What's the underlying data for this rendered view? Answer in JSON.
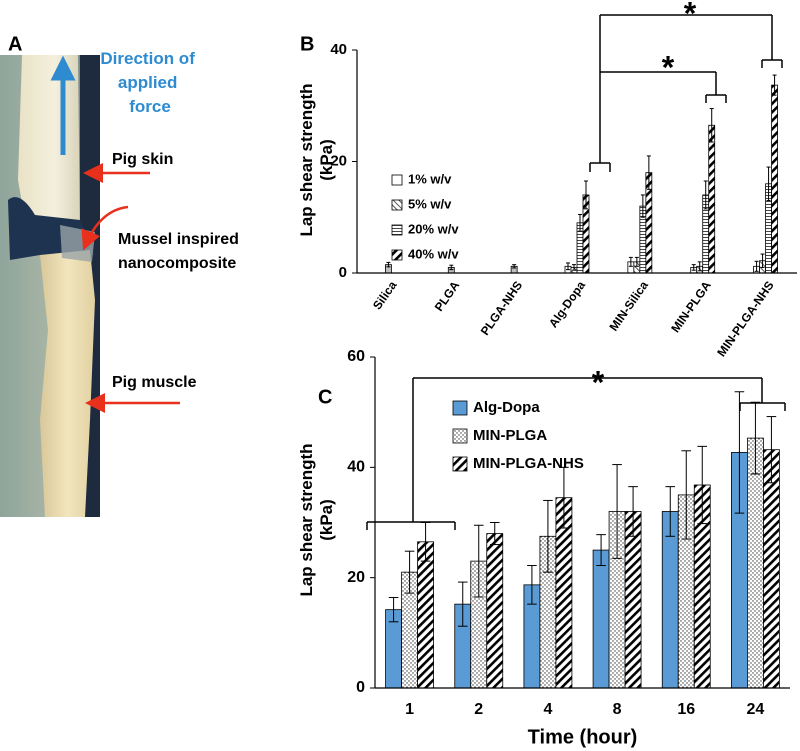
{
  "panel_a": {
    "letter": "A",
    "force_label": [
      "Direction of",
      "applied",
      "force"
    ],
    "skin_label": "Pig skin",
    "composite_label": [
      "Mussel inspired",
      "nanocomposite"
    ],
    "muscle_label": "Pig muscle"
  },
  "chart_data": [
    {
      "type": "bar",
      "letter": "B",
      "ylabel": [
        "Lap shear strength",
        "(kPa)"
      ],
      "categories": [
        "Silica",
        "PLGA",
        "PLGA-NHS",
        "Alg-Dopa",
        "MIN-Silica",
        "MIN-PLGA",
        "MIN-PLGA-NHS"
      ],
      "series": [
        {
          "name": "1% w/v",
          "color": "#ffffff",
          "pattern": "white",
          "point_colors": [
            "#bfbfbf",
            "#bfbfbf",
            "#bfbfbf",
            null,
            null,
            null,
            null
          ],
          "values": [
            1.5,
            1.0,
            1.2,
            1.2,
            2.0,
            1.0,
            1.2
          ],
          "errors": [
            0.4,
            0.4,
            0.3,
            0.6,
            0.8,
            0.5,
            0.9
          ]
        },
        {
          "name": "5% w/v",
          "color": "#ffffff",
          "pattern": "sparse",
          "values": [
            null,
            null,
            null,
            1.0,
            2.0,
            1.2,
            2.2
          ],
          "errors": [
            null,
            null,
            null,
            0.5,
            0.8,
            0.8,
            1.2
          ]
        },
        {
          "name": "20% w/v",
          "color": "#ffffff",
          "pattern": "horizontal",
          "values": [
            null,
            null,
            null,
            9.0,
            12.0,
            14.0,
            16.0
          ],
          "errors": [
            null,
            null,
            null,
            1.5,
            2.0,
            2.5,
            3.0
          ]
        },
        {
          "name": "40% w/v",
          "color": "#ffffff",
          "pattern": "diagonal",
          "values": [
            null,
            null,
            null,
            14.0,
            18.0,
            26.5,
            33.7
          ],
          "errors": [
            null,
            null,
            null,
            2.5,
            3.0,
            3.0,
            1.8
          ]
        }
      ],
      "ylim": [
        0,
        40
      ],
      "yticks": [
        0,
        20,
        40
      ],
      "annotations": [
        "*",
        "*"
      ]
    },
    {
      "type": "bar",
      "letter": "C",
      "ylabel": [
        "Lap shear strength",
        "(kPa)"
      ],
      "xlabel": "Time (hour)",
      "categories": [
        "1",
        "2",
        "4",
        "8",
        "16",
        "24"
      ],
      "series": [
        {
          "name": "Alg-Dopa",
          "color": "#5b9bd5",
          "pattern": "solid",
          "values": [
            14.2,
            15.2,
            18.7,
            25.0,
            32.0,
            42.7
          ],
          "errors": [
            2.2,
            4.0,
            3.5,
            2.8,
            4.5,
            11.0
          ]
        },
        {
          "name": "MIN-PLGA",
          "color": "#ffffff",
          "pattern": "dots",
          "values": [
            21.0,
            23.0,
            27.5,
            32.0,
            35.0,
            45.3
          ],
          "errors": [
            3.8,
            6.5,
            6.5,
            8.5,
            8.0,
            6.5
          ]
        },
        {
          "name": "MIN-PLGA-NHS",
          "color": "#ffffff",
          "pattern": "diagonal",
          "values": [
            26.5,
            28.0,
            34.5,
            32.0,
            36.8,
            43.2
          ],
          "errors": [
            3.5,
            2.0,
            5.5,
            4.5,
            7.0,
            6.0
          ]
        }
      ],
      "ylim": [
        0,
        60
      ],
      "yticks": [
        0,
        20,
        40,
        60
      ],
      "annotations": [
        "*"
      ]
    }
  ]
}
